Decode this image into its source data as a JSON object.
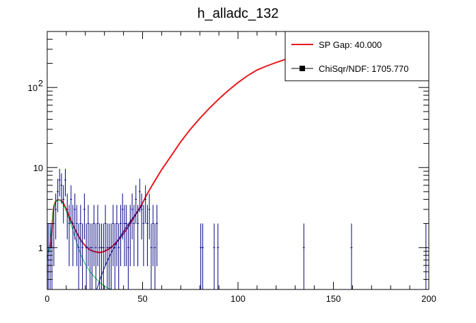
{
  "chart_data": {
    "type": "scatter",
    "title": "h_alladc_132",
    "xlabel": "",
    "ylabel": "",
    "xlim": [
      0,
      200
    ],
    "ylim": [
      0.3,
      500
    ],
    "yscale": "log",
    "grid": false,
    "x_ticks": [
      {
        "value": 0,
        "label": "0"
      },
      {
        "value": 50,
        "label": "50"
      },
      {
        "value": 100,
        "label": "100"
      },
      {
        "value": 150,
        "label": "150"
      },
      {
        "value": 200,
        "label": "200"
      }
    ],
    "y_ticks": [
      {
        "value": 1,
        "label": "1",
        "sup": ""
      },
      {
        "value": 10,
        "label": "10",
        "sup": ""
      },
      {
        "value": 100,
        "label": "10",
        "sup": "2"
      }
    ],
    "legend": {
      "position": "top-right",
      "entries": [
        {
          "label": "SP Gap: 40.000",
          "style": "line",
          "color": "#e8161b"
        },
        {
          "label": "ChiSqr/NDF: 1705.770",
          "style": "marker",
          "color": "#000000"
        }
      ]
    },
    "colors": {
      "data": "#000080",
      "total_fit": "#e8161b",
      "gaussian": "#00c844",
      "exponential": "#0a0a8c"
    },
    "series": [
      {
        "role": "data",
        "points": [
          [
            0.5,
            1
          ],
          [
            1.5,
            1
          ],
          [
            2.5,
            1
          ],
          [
            3.5,
            2
          ],
          [
            4.5,
            3
          ],
          [
            5.5,
            5
          ],
          [
            6.5,
            7
          ],
          [
            7.5,
            6
          ],
          [
            8.5,
            4
          ],
          [
            9.5,
            7
          ],
          [
            10.5,
            3
          ],
          [
            11.5,
            2
          ],
          [
            12.5,
            4
          ],
          [
            13.5,
            2
          ],
          [
            14.5,
            3
          ],
          [
            15.5,
            2
          ],
          [
            16.5,
            1
          ],
          [
            17.5,
            2
          ],
          [
            18.5,
            1
          ],
          [
            19.5,
            3
          ],
          [
            20.5,
            1
          ],
          [
            21.5,
            2
          ],
          [
            22.5,
            1
          ],
          [
            23.5,
            1
          ],
          [
            24.5,
            2
          ],
          [
            25.5,
            1
          ],
          [
            26.5,
            2
          ],
          [
            27.5,
            1
          ],
          [
            28.5,
            1
          ],
          [
            29.5,
            1
          ],
          [
            30.5,
            2
          ],
          [
            31.5,
            1
          ],
          [
            32.5,
            1
          ],
          [
            33.5,
            1
          ],
          [
            34.5,
            2
          ],
          [
            35.5,
            1
          ],
          [
            36.5,
            2
          ],
          [
            37.5,
            1
          ],
          [
            38.5,
            2
          ],
          [
            39.5,
            3
          ],
          [
            40.5,
            2
          ],
          [
            41.5,
            2
          ],
          [
            42.5,
            1
          ],
          [
            43.5,
            2
          ],
          [
            44.5,
            3
          ],
          [
            45.5,
            2
          ],
          [
            46.5,
            4
          ],
          [
            47.5,
            2
          ],
          [
            48.5,
            5
          ],
          [
            49.5,
            3
          ],
          [
            50.5,
            2
          ],
          [
            51.5,
            4
          ],
          [
            52.5,
            2
          ],
          [
            53.5,
            3
          ],
          [
            54.5,
            1
          ],
          [
            55.5,
            2
          ],
          [
            56.5,
            1
          ],
          [
            57.5,
            2
          ],
          [
            80.5,
            1
          ],
          [
            81.5,
            1
          ],
          [
            87.5,
            1
          ],
          [
            89.5,
            1
          ],
          [
            134.5,
            1
          ],
          [
            159.5,
            1
          ],
          [
            198.5,
            1
          ]
        ]
      },
      {
        "role": "total_fit",
        "x": [
          2,
          3,
          4,
          5,
          6,
          7,
          8,
          9,
          10,
          12,
          14,
          16,
          18,
          20,
          22,
          24,
          26,
          27,
          28,
          30,
          32,
          34,
          36,
          38,
          40,
          42,
          44,
          46,
          48,
          50,
          52,
          55,
          60,
          65,
          70,
          75,
          80,
          85,
          90,
          95,
          100,
          105,
          110,
          115,
          120,
          125
        ],
        "y": [
          1.0,
          2.7,
          3.6,
          3.9,
          3.95,
          3.9,
          3.75,
          3.4,
          3.0,
          2.3,
          1.8,
          1.45,
          1.2,
          1.05,
          0.95,
          0.9,
          0.88,
          0.87,
          0.87,
          0.9,
          0.95,
          1.03,
          1.15,
          1.3,
          1.5,
          1.75,
          2.1,
          2.5,
          3.0,
          3.6,
          4.5,
          6.0,
          9.4,
          14,
          21,
          30,
          41,
          55,
          72,
          92,
          115,
          140,
          165,
          185,
          205,
          225
        ]
      },
      {
        "role": "gaussian",
        "x": [
          0,
          1,
          2,
          3,
          4,
          5,
          6,
          7,
          8,
          9,
          10,
          12,
          14,
          16,
          18,
          20,
          22,
          24,
          26,
          28,
          30,
          32,
          34
        ],
        "y": [
          0.72,
          0.95,
          1.6,
          2.7,
          3.5,
          3.9,
          3.95,
          3.85,
          3.6,
          3.25,
          2.85,
          2.1,
          1.5,
          1.05,
          0.78,
          0.62,
          0.52,
          0.45,
          0.4,
          0.36,
          0.33,
          0.31,
          0.3
        ]
      },
      {
        "role": "exponential",
        "x": [
          26,
          28,
          30,
          32,
          34,
          36,
          38,
          40,
          42,
          44,
          46,
          48,
          50
        ],
        "y": [
          0.3,
          0.42,
          0.56,
          0.72,
          0.9,
          1.1,
          1.35,
          1.6,
          1.9,
          2.2,
          2.55,
          2.95,
          3.4
        ]
      }
    ]
  }
}
